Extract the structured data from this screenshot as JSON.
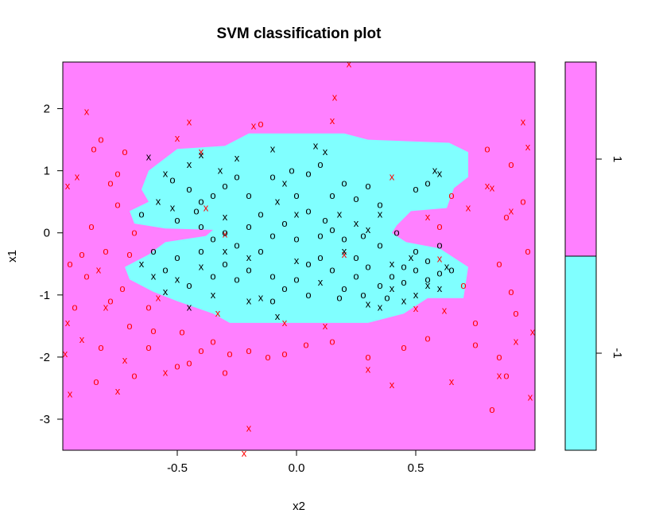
{
  "chart_data": {
    "type": "scatter",
    "title": "SVM classification plot",
    "xlabel": "x2",
    "ylabel": "x1",
    "xlim": [
      -0.98,
      1.0
    ],
    "ylim": [
      -3.5,
      2.75
    ],
    "x_ticks": [
      -0.5,
      0.0,
      0.5
    ],
    "x_tick_labels": [
      "-0.5",
      "0.0",
      "0.5"
    ],
    "y_ticks": [
      2,
      1,
      0,
      -1,
      -2,
      -3
    ],
    "y_tick_labels": [
      "2",
      "1",
      "0",
      "-1",
      "-2",
      "-3"
    ],
    "grid": false,
    "legend": {
      "position": "right",
      "entries": [
        {
          "label": "1",
          "color": "#ff80ff"
        },
        {
          "label": "-1",
          "color": "#80ffff"
        }
      ]
    },
    "colors": {
      "class_pos_region": "#ff80ff",
      "class_neg_region": "#80ffff",
      "class_pos_points": "#ff0000",
      "class_neg_points": "#000000"
    },
    "marker_glyphs": {
      "support_vector": "x",
      "other": "o"
    },
    "decision_region_neg": {
      "class": "-1",
      "polygon": [
        [
          -0.62,
          1.0
        ],
        [
          -0.5,
          1.35
        ],
        [
          -0.3,
          1.4
        ],
        [
          -0.2,
          1.6
        ],
        [
          0.2,
          1.6
        ],
        [
          0.3,
          1.5
        ],
        [
          0.64,
          1.45
        ],
        [
          0.72,
          1.3
        ],
        [
          0.72,
          0.9
        ],
        [
          0.66,
          0.72
        ],
        [
          0.63,
          0.4
        ],
        [
          0.48,
          0.35
        ],
        [
          0.42,
          0.12
        ],
        [
          0.4,
          0.0
        ],
        [
          0.46,
          -0.15
        ],
        [
          0.6,
          -0.25
        ],
        [
          0.72,
          -0.55
        ],
        [
          0.7,
          -1.05
        ],
        [
          0.55,
          -1.05
        ],
        [
          0.45,
          -1.3
        ],
        [
          0.3,
          -1.45
        ],
        [
          -0.28,
          -1.45
        ],
        [
          -0.35,
          -1.3
        ],
        [
          -0.5,
          -1.1
        ],
        [
          -0.6,
          -0.95
        ],
        [
          -0.7,
          -0.75
        ],
        [
          -0.72,
          -0.55
        ],
        [
          -0.62,
          -0.35
        ],
        [
          -0.55,
          -0.15
        ],
        [
          -0.38,
          -0.05
        ],
        [
          -0.35,
          0.05
        ],
        [
          -0.55,
          0.07
        ],
        [
          -0.68,
          0.15
        ],
        [
          -0.7,
          0.35
        ],
        [
          -0.62,
          0.5
        ],
        [
          -0.65,
          0.7
        ]
      ]
    },
    "series": [
      {
        "name": "1",
        "support_vectors": [
          [
            -0.88,
            1.95
          ],
          [
            -0.92,
            0.9
          ],
          [
            -0.96,
            0.75
          ],
          [
            -0.9,
            -1.72
          ],
          [
            -0.96,
            -1.45
          ],
          [
            -0.83,
            -0.6
          ],
          [
            -0.8,
            -1.2
          ],
          [
            -0.75,
            -2.55
          ],
          [
            -0.72,
            -2.05
          ],
          [
            -0.58,
            -1.05
          ],
          [
            -0.55,
            -2.25
          ],
          [
            -0.5,
            1.52
          ],
          [
            -0.45,
            1.78
          ],
          [
            -0.4,
            1.3
          ],
          [
            -0.38,
            0.4
          ],
          [
            -0.33,
            -1.3
          ],
          [
            -0.3,
            -0.02
          ],
          [
            -0.18,
            1.72
          ],
          [
            -0.05,
            -1.45
          ],
          [
            0.12,
            -1.5
          ],
          [
            0.16,
            2.18
          ],
          [
            0.2,
            -0.35
          ],
          [
            0.22,
            2.72
          ],
          [
            0.15,
            1.8
          ],
          [
            0.3,
            -2.2
          ],
          [
            0.4,
            -2.45
          ],
          [
            0.5,
            -1.22
          ],
          [
            0.55,
            0.25
          ],
          [
            0.62,
            -1.25
          ],
          [
            0.65,
            -2.4
          ],
          [
            0.72,
            0.4
          ],
          [
            0.8,
            0.75
          ],
          [
            0.82,
            0.72
          ],
          [
            0.85,
            -2.3
          ],
          [
            0.9,
            0.35
          ],
          [
            0.92,
            -1.75
          ],
          [
            0.95,
            1.78
          ],
          [
            0.97,
            1.38
          ],
          [
            0.99,
            -1.6
          ],
          [
            0.98,
            -2.65
          ],
          [
            -0.2,
            -3.15
          ],
          [
            -0.22,
            -3.55
          ],
          [
            -0.95,
            -2.6
          ],
          [
            -0.97,
            -1.95
          ],
          [
            0.4,
            0.9
          ],
          [
            0.6,
            -0.42
          ]
        ],
        "points": [
          [
            -0.9,
            -0.35
          ],
          [
            -0.85,
            1.35
          ],
          [
            -0.82,
            1.5
          ],
          [
            -0.78,
            0.8
          ],
          [
            -0.75,
            0.45
          ],
          [
            -0.72,
            1.3
          ],
          [
            -0.7,
            -0.35
          ],
          [
            -0.78,
            -1.1
          ],
          [
            -0.82,
            -1.85
          ],
          [
            -0.84,
            -2.4
          ],
          [
            -0.7,
            -1.5
          ],
          [
            -0.68,
            -2.3
          ],
          [
            -0.62,
            -1.85
          ],
          [
            -0.6,
            -1.58
          ],
          [
            -0.5,
            -2.15
          ],
          [
            -0.45,
            -2.1
          ],
          [
            -0.4,
            -1.9
          ],
          [
            -0.35,
            -1.75
          ],
          [
            -0.3,
            -2.25
          ],
          [
            -0.15,
            1.75
          ],
          [
            -0.95,
            -0.5
          ],
          [
            -0.93,
            -1.2
          ],
          [
            -0.88,
            -0.7
          ],
          [
            -0.86,
            0.1
          ],
          [
            -0.8,
            -0.3
          ],
          [
            -0.75,
            0.95
          ],
          [
            -0.73,
            -0.9
          ],
          [
            -0.68,
            0.0
          ],
          [
            0.6,
            0.1
          ],
          [
            0.65,
            0.6
          ],
          [
            0.7,
            -0.85
          ],
          [
            0.75,
            -1.45
          ],
          [
            0.8,
            1.35
          ],
          [
            0.85,
            -0.5
          ],
          [
            0.88,
            0.25
          ],
          [
            0.9,
            1.1
          ],
          [
            0.9,
            -0.95
          ],
          [
            0.92,
            -1.3
          ],
          [
            0.95,
            0.5
          ],
          [
            0.97,
            -0.3
          ],
          [
            0.85,
            -2.0
          ],
          [
            0.88,
            -2.3
          ],
          [
            0.82,
            -2.85
          ],
          [
            0.75,
            -1.8
          ],
          [
            0.55,
            -1.7
          ],
          [
            0.45,
            -1.85
          ],
          [
            0.3,
            -2.0
          ],
          [
            -0.12,
            -2.0
          ],
          [
            -0.05,
            -1.95
          ],
          [
            0.04,
            -1.8
          ],
          [
            0.15,
            -1.75
          ],
          [
            -0.2,
            -1.9
          ],
          [
            -0.28,
            -1.95
          ],
          [
            -0.48,
            -1.6
          ],
          [
            -0.62,
            -1.2
          ]
        ]
      },
      {
        "name": "-1",
        "support_vectors": [
          [
            -0.62,
            1.22
          ],
          [
            -0.58,
            0.5
          ],
          [
            -0.55,
            0.95
          ],
          [
            -0.52,
            0.4
          ],
          [
            -0.45,
            1.1
          ],
          [
            -0.4,
            1.25
          ],
          [
            -0.32,
            1.0
          ],
          [
            -0.3,
            0.25
          ],
          [
            -0.25,
            1.2
          ],
          [
            -0.2,
            -0.4
          ],
          [
            -0.1,
            1.35
          ],
          [
            -0.08,
            0.5
          ],
          [
            -0.05,
            0.8
          ],
          [
            0.0,
            0.3
          ],
          [
            0.08,
            1.4
          ],
          [
            0.12,
            1.3
          ],
          [
            0.18,
            0.3
          ],
          [
            0.25,
            0.15
          ],
          [
            0.3,
            0.05
          ],
          [
            0.35,
            0.3
          ],
          [
            0.4,
            -0.5
          ],
          [
            0.45,
            -1.1
          ],
          [
            0.5,
            -1.0
          ],
          [
            0.55,
            -0.85
          ],
          [
            0.6,
            -0.9
          ],
          [
            0.63,
            -0.55
          ],
          [
            0.58,
            1.0
          ],
          [
            0.6,
            0.95
          ],
          [
            -0.65,
            -0.5
          ],
          [
            -0.6,
            -0.7
          ],
          [
            -0.55,
            -0.95
          ],
          [
            -0.5,
            -0.75
          ],
          [
            -0.45,
            -1.2
          ],
          [
            -0.4,
            -0.55
          ],
          [
            -0.3,
            -0.3
          ],
          [
            -0.2,
            -1.1
          ],
          [
            -0.15,
            -1.05
          ],
          [
            0.0,
            -0.45
          ],
          [
            0.1,
            -0.8
          ],
          [
            0.2,
            -0.3
          ],
          [
            0.3,
            -1.15
          ],
          [
            0.35,
            -1.2
          ],
          [
            0.4,
            -0.9
          ],
          [
            0.48,
            -0.4
          ],
          [
            -0.08,
            -1.35
          ],
          [
            -0.35,
            -1.0
          ]
        ],
        "points": [
          [
            -0.52,
            0.85
          ],
          [
            -0.45,
            0.7
          ],
          [
            -0.4,
            0.5
          ],
          [
            -0.35,
            0.6
          ],
          [
            -0.3,
            0.75
          ],
          [
            -0.25,
            0.9
          ],
          [
            -0.2,
            0.6
          ],
          [
            -0.15,
            0.3
          ],
          [
            -0.1,
            0.9
          ],
          [
            0.0,
            0.6
          ],
          [
            0.05,
            0.95
          ],
          [
            0.1,
            1.1
          ],
          [
            0.15,
            0.6
          ],
          [
            0.2,
            0.8
          ],
          [
            0.25,
            0.55
          ],
          [
            0.3,
            0.75
          ],
          [
            0.35,
            0.45
          ],
          [
            0.5,
            0.7
          ],
          [
            0.55,
            0.8
          ],
          [
            -0.5,
            0.2
          ],
          [
            -0.4,
            0.1
          ],
          [
            -0.35,
            -0.1
          ],
          [
            -0.3,
            0.0
          ],
          [
            -0.25,
            -0.2
          ],
          [
            -0.2,
            0.1
          ],
          [
            -0.15,
            -0.3
          ],
          [
            -0.1,
            -0.05
          ],
          [
            -0.05,
            0.15
          ],
          [
            0.0,
            -0.1
          ],
          [
            0.05,
            0.35
          ],
          [
            0.1,
            -0.05
          ],
          [
            0.15,
            0.05
          ],
          [
            0.2,
            -0.1
          ],
          [
            0.25,
            -0.4
          ],
          [
            0.35,
            -0.2
          ],
          [
            0.45,
            -0.55
          ],
          [
            0.5,
            -0.3
          ],
          [
            0.55,
            -0.45
          ],
          [
            0.6,
            -0.2
          ],
          [
            0.65,
            -0.6
          ],
          [
            -0.6,
            -0.3
          ],
          [
            -0.55,
            -0.6
          ],
          [
            -0.5,
            -0.4
          ],
          [
            -0.45,
            -0.85
          ],
          [
            -0.4,
            -0.3
          ],
          [
            -0.35,
            -0.7
          ],
          [
            -0.3,
            -0.5
          ],
          [
            -0.25,
            -0.75
          ],
          [
            -0.2,
            -0.6
          ],
          [
            -0.1,
            -0.7
          ],
          [
            -0.05,
            -0.9
          ],
          [
            0.0,
            -0.75
          ],
          [
            0.05,
            -0.5
          ],
          [
            0.1,
            -0.4
          ],
          [
            0.15,
            -0.6
          ],
          [
            0.2,
            -0.9
          ],
          [
            0.25,
            -0.7
          ],
          [
            0.3,
            -0.55
          ],
          [
            0.35,
            -0.85
          ],
          [
            0.4,
            -0.7
          ],
          [
            0.45,
            -0.8
          ],
          [
            0.5,
            -0.6
          ],
          [
            0.55,
            -0.75
          ],
          [
            0.6,
            -0.65
          ],
          [
            -0.65,
            0.3
          ],
          [
            -0.1,
            -1.1
          ],
          [
            0.05,
            -1.0
          ],
          [
            0.18,
            -1.05
          ],
          [
            0.28,
            -1.0
          ],
          [
            0.38,
            -1.05
          ],
          [
            -0.42,
            0.35
          ],
          [
            0.42,
            0.0
          ],
          [
            0.12,
            0.2
          ],
          [
            -0.02,
            1.0
          ],
          [
            0.28,
            -0.05
          ]
        ]
      }
    ]
  }
}
